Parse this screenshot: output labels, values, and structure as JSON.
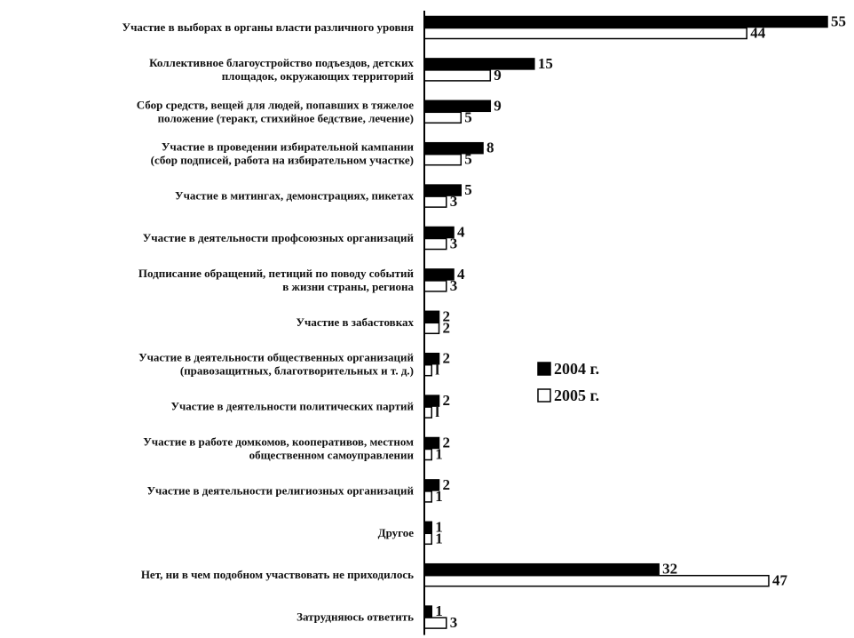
{
  "chart_data": {
    "type": "bar",
    "orientation": "horizontal",
    "categories": [
      [
        "Участие в выборах в органы власти различного уровня"
      ],
      [
        "Коллективное благоустройство подъездов, детских",
        "площадок, окружающих территорий"
      ],
      [
        "Сбор средств, вещей для людей, попавших в тяжелое",
        "положение (теракт, стихийное бедствие, лечение)"
      ],
      [
        "Участие в проведении избирательной кампании",
        "(сбор подписей, работа на избирательном участке)"
      ],
      [
        "Участие в митингах, демонстрациях, пикетах"
      ],
      [
        "Участие в деятельности профсоюзных организаций"
      ],
      [
        "Подписание обращений, петиций по поводу событий",
        "в жизни страны, региона"
      ],
      [
        "Участие в забастовках"
      ],
      [
        "Участие в деятельности общественных организаций",
        "(правозащитных, благотворительных и т. д.)"
      ],
      [
        "Участие в деятельности политических партий"
      ],
      [
        "Участие в работе домкомов, кооперативов, местном",
        "общественном самоуправлении"
      ],
      [
        "Участие в деятельности религиозных организаций"
      ],
      [
        "Другое"
      ],
      [
        "Нет, ни в чем подобном участвовать не приходилось"
      ],
      [
        "Затрудняюсь ответить"
      ]
    ],
    "series": [
      {
        "name": "2004 г.",
        "color": "#000000",
        "values": [
          55,
          15,
          9,
          8,
          5,
          4,
          4,
          2,
          2,
          2,
          2,
          2,
          1,
          32,
          1
        ]
      },
      {
        "name": "2005 г.",
        "color": "#ffffff",
        "values": [
          44,
          9,
          5,
          5,
          3,
          3,
          3,
          2,
          1,
          1,
          1,
          1,
          1,
          47,
          3
        ]
      }
    ],
    "data_labels": [
      [
        "55",
        "44"
      ],
      [
        "15",
        "9"
      ],
      [
        "9",
        "5"
      ],
      [
        "8",
        "5"
      ],
      [
        "5",
        "3"
      ],
      [
        "4",
        "3"
      ],
      [
        "4",
        "3"
      ],
      [
        "2",
        "2"
      ],
      [
        "2",
        "l"
      ],
      [
        "2",
        "l"
      ],
      [
        "2",
        "1"
      ],
      [
        "2",
        "1"
      ],
      [
        "1",
        "1"
      ],
      [
        "32",
        "47"
      ],
      [
        "1",
        "3"
      ]
    ],
    "xlim": [
      0,
      55
    ],
    "grid": false,
    "legend_position": "right-middle"
  }
}
